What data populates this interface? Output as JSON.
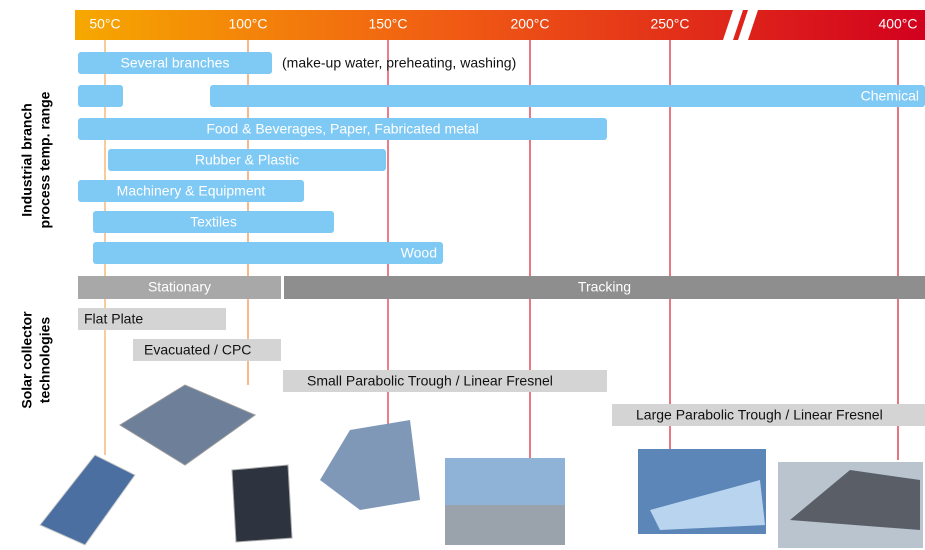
{
  "temperature_scale": {
    "labels": [
      "50°C",
      "100°C",
      "150°C",
      "200°C",
      "250°C",
      "400°C"
    ]
  },
  "side_labels": {
    "industrial": [
      "Industrial branch",
      "process temp. range"
    ],
    "solar": [
      "Solar collector",
      "technologies"
    ]
  },
  "industrial_branches": [
    {
      "label": "Several branches",
      "note": "(make-up water, preheating, washing)"
    },
    {
      "label": "Chemical"
    },
    {
      "label": "Food & Beverages, Paper, Fabricated metal"
    },
    {
      "label": "Rubber & Plastic"
    },
    {
      "label": "Machinery & Equipment"
    },
    {
      "label": "Textiles"
    },
    {
      "label": "Wood"
    }
  ],
  "collector_technologies": {
    "groups": [
      "Stationary",
      "Tracking"
    ],
    "items": [
      "Flat Plate",
      "Evacuated / CPC",
      "Small Parabolic Trough / Linear Fresnel",
      "Large Parabolic Trough / Linear Fresnel"
    ]
  }
}
